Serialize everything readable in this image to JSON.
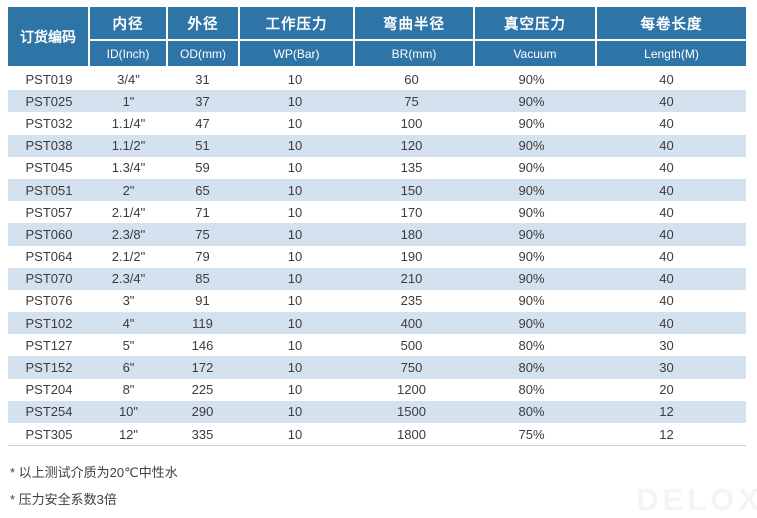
{
  "chart_data": {
    "type": "table",
    "code_header": "订货编码",
    "columns": [
      {
        "zh": "内径",
        "en": "ID(Inch)"
      },
      {
        "zh": "外径",
        "en": "OD(mm)"
      },
      {
        "zh": "工作压力",
        "en": "WP(Bar)"
      },
      {
        "zh": "弯曲半径",
        "en": "BR(mm)"
      },
      {
        "zh": "真空压力",
        "en": "Vacuum"
      },
      {
        "zh": "每卷长度",
        "en": "Length(M)"
      }
    ],
    "rows": [
      [
        "PST019",
        "3/4\"",
        "31",
        "10",
        "60",
        "90%",
        "40"
      ],
      [
        "PST025",
        "1\"",
        "37",
        "10",
        "75",
        "90%",
        "40"
      ],
      [
        "PST032",
        "1.1/4\"",
        "47",
        "10",
        "100",
        "90%",
        "40"
      ],
      [
        "PST038",
        "1.1/2\"",
        "51",
        "10",
        "120",
        "90%",
        "40"
      ],
      [
        "PST045",
        "1.3/4\"",
        "59",
        "10",
        "135",
        "90%",
        "40"
      ],
      [
        "PST051",
        "2\"",
        "65",
        "10",
        "150",
        "90%",
        "40"
      ],
      [
        "PST057",
        "2.1/4\"",
        "71",
        "10",
        "170",
        "90%",
        "40"
      ],
      [
        "PST060",
        "2.3/8\"",
        "75",
        "10",
        "180",
        "90%",
        "40"
      ],
      [
        "PST064",
        "2.1/2\"",
        "79",
        "10",
        "190",
        "90%",
        "40"
      ],
      [
        "PST070",
        "2.3/4\"",
        "85",
        "10",
        "210",
        "90%",
        "40"
      ],
      [
        "PST076",
        "3\"",
        "91",
        "10",
        "235",
        "90%",
        "40"
      ],
      [
        "PST102",
        "4\"",
        "119",
        "10",
        "400",
        "90%",
        "40"
      ],
      [
        "PST127",
        "5\"",
        "146",
        "10",
        "500",
        "80%",
        "30"
      ],
      [
        "PST152",
        "6\"",
        "172",
        "10",
        "750",
        "80%",
        "30"
      ],
      [
        "PST204",
        "8\"",
        "225",
        "10",
        "1200",
        "80%",
        "20"
      ],
      [
        "PST254",
        "10\"",
        "290",
        "10",
        "1500",
        "80%",
        "12"
      ],
      [
        "PST305",
        "12\"",
        "335",
        "10",
        "1800",
        "75%",
        "12"
      ]
    ]
  },
  "notes": [
    "* 以上测试介质为20℃中性水",
    "* 压力安全系数3倍"
  ],
  "watermark": "DELOX",
  "colors": {
    "header_bg": "#2e74a6",
    "stripe_bg": "#d3e2ee",
    "body_text": "#3c3c3c"
  }
}
